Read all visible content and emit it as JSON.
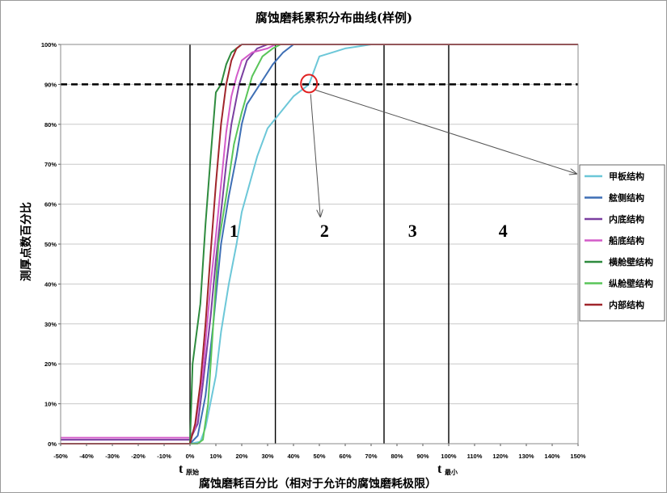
{
  "chart_data": {
    "type": "line",
    "title": "腐蚀磨耗累积分布曲线(样例)",
    "xlabel": "腐蚀磨耗百分比（相对于允许的腐蚀磨耗极限）",
    "ylabel": "测厚点数百分比",
    "xlim": [
      -50,
      150
    ],
    "ylim": [
      0,
      100
    ],
    "x_ticks": [
      "-50%",
      "-40%",
      "-30%",
      "-20%",
      "-10%",
      "0%",
      "10%",
      "20%",
      "30%",
      "40%",
      "50%",
      "60%",
      "70%",
      "80%",
      "90%",
      "100%",
      "110%",
      "120%",
      "130%",
      "140%",
      "150%"
    ],
    "y_ticks": [
      "0%",
      "10%",
      "20%",
      "30%",
      "40%",
      "50%",
      "60%",
      "70%",
      "80%",
      "90%",
      "100%"
    ],
    "grid": true,
    "legend": "right",
    "reference_line_y": 90,
    "zone_boundaries_x": [
      0,
      33,
      75,
      100
    ],
    "zones": [
      {
        "label": "1",
        "x": 17
      },
      {
        "label": "2",
        "x": 52
      },
      {
        "label": "3",
        "x": 86
      },
      {
        "label": "4",
        "x": 121
      }
    ],
    "t_marks": [
      {
        "main": "t",
        "sub": "原始",
        "x": 0
      },
      {
        "main": "t",
        "sub": "最小",
        "x": 100
      }
    ],
    "highlight_point": {
      "x": 46,
      "y": 90
    },
    "series": [
      {
        "name": "甲板结构",
        "color": "#6CC7D8",
        "points": [
          [
            -50,
            0
          ],
          [
            0,
            0
          ],
          [
            4,
            0.5
          ],
          [
            6,
            4
          ],
          [
            10,
            17
          ],
          [
            12,
            28
          ],
          [
            15,
            40
          ],
          [
            18,
            50
          ],
          [
            20,
            58
          ],
          [
            23,
            65
          ],
          [
            26,
            72
          ],
          [
            30,
            79
          ],
          [
            35,
            83
          ],
          [
            40,
            87
          ],
          [
            46,
            90
          ],
          [
            50,
            97
          ],
          [
            55,
            98
          ],
          [
            60,
            99
          ],
          [
            65,
            99.5
          ],
          [
            70,
            100
          ],
          [
            150,
            100
          ]
        ]
      },
      {
        "name": "舷侧结构",
        "color": "#3E6FB5",
        "points": [
          [
            -50,
            0
          ],
          [
            0,
            0
          ],
          [
            3,
            2
          ],
          [
            6,
            12
          ],
          [
            9,
            30
          ],
          [
            12,
            50
          ],
          [
            15,
            62
          ],
          [
            18,
            72
          ],
          [
            20,
            80
          ],
          [
            22,
            85
          ],
          [
            25,
            88
          ],
          [
            28,
            91
          ],
          [
            32,
            95
          ],
          [
            36,
            98
          ],
          [
            40,
            100
          ],
          [
            150,
            100
          ]
        ]
      },
      {
        "name": "内底结构",
        "color": "#7A3FA0",
        "points": [
          [
            -50,
            1
          ],
          [
            0,
            1
          ],
          [
            3,
            5
          ],
          [
            5,
            15
          ],
          [
            8,
            32
          ],
          [
            10,
            46
          ],
          [
            12,
            58
          ],
          [
            14,
            70
          ],
          [
            16,
            80
          ],
          [
            19,
            90
          ],
          [
            22,
            96
          ],
          [
            26,
            99
          ],
          [
            30,
            100
          ],
          [
            150,
            100
          ]
        ]
      },
      {
        "name": "船底结构",
        "color": "#D35BC9",
        "points": [
          [
            -50,
            1.5
          ],
          [
            0,
            1.5
          ],
          [
            2,
            4
          ],
          [
            5,
            18
          ],
          [
            8,
            40
          ],
          [
            10,
            52
          ],
          [
            12,
            65
          ],
          [
            14,
            78
          ],
          [
            16,
            87
          ],
          [
            18,
            92
          ],
          [
            20,
            96
          ],
          [
            24,
            98
          ],
          [
            30,
            99
          ],
          [
            33,
            100
          ],
          [
            150,
            100
          ]
        ]
      },
      {
        "name": "横舱壁结构",
        "color": "#2E8B3E",
        "points": [
          [
            -50,
            0
          ],
          [
            0,
            0
          ],
          [
            1,
            20
          ],
          [
            2,
            25
          ],
          [
            4,
            35
          ],
          [
            6,
            55
          ],
          [
            8,
            72
          ],
          [
            10,
            88
          ],
          [
            12,
            90
          ],
          [
            14,
            95
          ],
          [
            16,
            98
          ],
          [
            18,
            99
          ],
          [
            20,
            100
          ],
          [
            150,
            100
          ]
        ]
      },
      {
        "name": "纵舱壁结构",
        "color": "#59C559",
        "points": [
          [
            -50,
            0
          ],
          [
            0,
            0
          ],
          [
            3,
            0
          ],
          [
            5,
            1
          ],
          [
            7,
            10
          ],
          [
            9,
            30
          ],
          [
            11,
            50
          ],
          [
            14,
            62
          ],
          [
            17,
            75
          ],
          [
            20,
            83
          ],
          [
            24,
            92
          ],
          [
            28,
            97
          ],
          [
            32,
            99
          ],
          [
            35,
            100
          ],
          [
            150,
            100
          ]
        ]
      },
      {
        "name": "内部结构",
        "color": "#A0252B",
        "points": [
          [
            -50,
            0
          ],
          [
            0,
            0
          ],
          [
            2,
            5
          ],
          [
            4,
            15
          ],
          [
            6,
            30
          ],
          [
            8,
            48
          ],
          [
            10,
            65
          ],
          [
            12,
            80
          ],
          [
            14,
            90
          ],
          [
            16,
            96
          ],
          [
            18,
            99
          ],
          [
            20,
            100
          ],
          [
            150,
            100
          ]
        ]
      }
    ]
  }
}
